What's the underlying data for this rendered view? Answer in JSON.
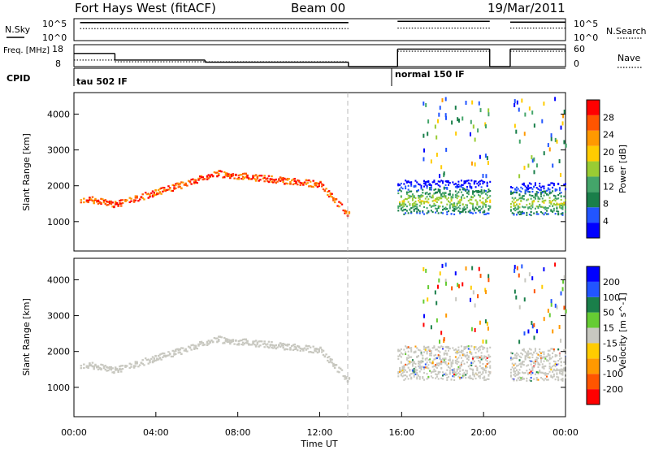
{
  "header": {
    "title": "Fort Hays West (fitACF)",
    "beam": "Beam 00",
    "date": "19/Mar/2011"
  },
  "colors": {
    "power": [
      "#0000ff",
      "#2255ff",
      "#1a7f4a",
      "#44a56a",
      "#99cc33",
      "#ffcc00",
      "#ff9900",
      "#ff5500",
      "#ff0000"
    ],
    "velocity": [
      "#ff0000",
      "#ff5500",
      "#ff9900",
      "#ffcc00",
      "#c8c8c0",
      "#66cc33",
      "#1a7f4a",
      "#2255ff",
      "#0000ff"
    ],
    "ground_scatter": "#c8c8c0"
  },
  "chart_data": [
    {
      "type": "line",
      "panel": "nsky-nsearch",
      "left_label": "N.Sky",
      "right_label": "N.Search",
      "left_ticks": [
        "10^5",
        "10^0"
      ],
      "right_ticks": [
        "10^5",
        "10^0"
      ],
      "x_range": [
        0,
        24
      ],
      "series": [
        {
          "style": "solid",
          "segments": [
            [
              0.3,
              13.4,
              0.82
            ],
            [
              15.8,
              20.3,
              0.88
            ],
            [
              21.3,
              24,
              0.84
            ]
          ]
        },
        {
          "style": "dotted",
          "segments": [
            [
              0.3,
              13.4,
              0.55
            ],
            [
              15.8,
              20.3,
              0.57
            ],
            [
              21.3,
              24,
              0.57
            ]
          ]
        }
      ]
    },
    {
      "type": "line",
      "panel": "freq-nave",
      "left_label": "Freq. [MHz]",
      "right_label": "Nave",
      "left_ticks": [
        "18",
        "8"
      ],
      "right_ticks": [
        "60",
        "0"
      ],
      "x_range": [
        0,
        24
      ],
      "series": [
        {
          "style": "solid",
          "segments": [
            [
              0,
              2,
              14
            ],
            [
              2,
              6.4,
              11
            ],
            [
              6.4,
              13.4,
              10
            ],
            [
              13.4,
              15.8,
              8
            ],
            [
              15.8,
              20.3,
              16
            ],
            [
              20.3,
              21.3,
              8
            ],
            [
              21.3,
              24,
              16
            ]
          ]
        },
        {
          "style": "dotted",
          "segments": [
            [
              0,
              2,
              11
            ],
            [
              2,
              13.4,
              10.2
            ],
            [
              15.8,
              20.3,
              15
            ],
            [
              21.3,
              24,
              15
            ]
          ]
        }
      ]
    },
    {
      "type": "table",
      "panel": "cpid",
      "label": "CPID",
      "entries": [
        {
          "text": "tau 502 IF",
          "start": 0
        },
        {
          "text": "normal 150 IF",
          "start": 15.8
        }
      ]
    },
    {
      "type": "scatter",
      "panel": "power",
      "ylabel": "Slant Range [km]",
      "yticks": [
        1000,
        2000,
        3000,
        4000
      ],
      "ylim": [
        180,
        4600
      ],
      "colorbar_label": "Power [dB]",
      "colorbar_ticks": [
        4,
        8,
        12,
        16,
        20,
        24,
        28
      ],
      "colorbar_range": [
        0,
        32
      ],
      "bands": [
        {
          "t0": 0.3,
          "t1": 13.4,
          "center": "ionosphere_arc",
          "width": 180,
          "value_range": [
            22,
            32
          ],
          "density": 0.7
        },
        {
          "t0": 15.8,
          "t1": 20.3,
          "center": 1700,
          "width": 950,
          "value_range": [
            2,
            22
          ],
          "density": 0.95
        },
        {
          "t0": 21.3,
          "t1": 24,
          "center": 1650,
          "width": 900,
          "value_range": [
            2,
            22
          ],
          "density": 0.9
        }
      ]
    },
    {
      "type": "scatter",
      "panel": "velocity",
      "ylabel": "Slant Range [km]",
      "yticks": [
        1000,
        2000,
        3000,
        4000
      ],
      "ylim": [
        180,
        4600
      ],
      "colorbar_label": "Velocity [m s^-1]",
      "colorbar_ticks": [
        "200",
        "100",
        "50",
        "15",
        "-15",
        "-50",
        "-100",
        "-200"
      ],
      "colorbar_range": [
        -250,
        250
      ],
      "xlabel": "Time UT",
      "xticks": [
        "00:00",
        "04:00",
        "08:00",
        "12:00",
        "16:00",
        "20:00",
        "00:00"
      ],
      "xlim": [
        0,
        24
      ]
    }
  ]
}
